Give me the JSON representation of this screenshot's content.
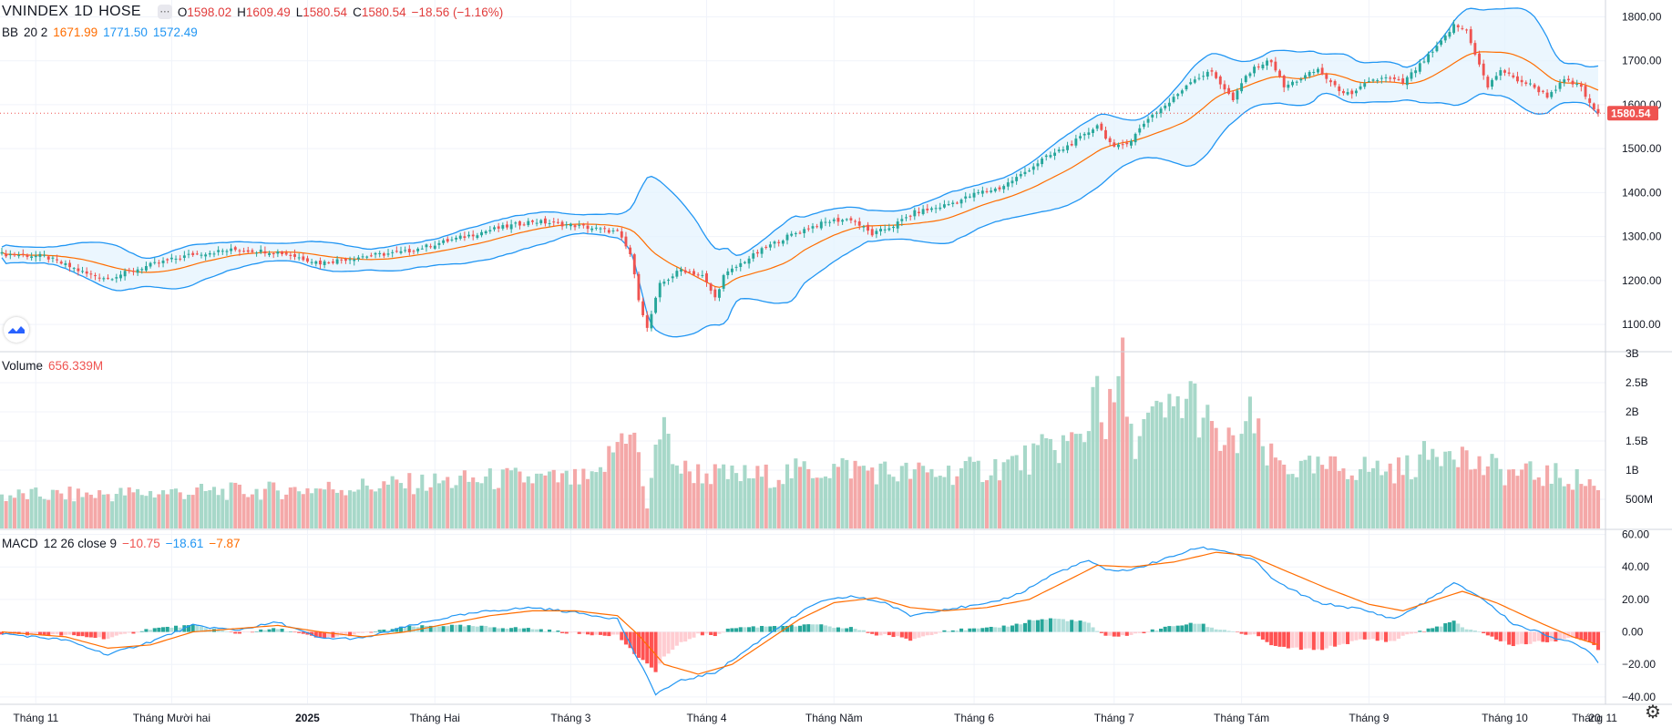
{
  "header": {
    "symbol": "VNINDEX",
    "interval": "1D",
    "exchange": "HOSE",
    "menu_icon": "ellipsis",
    "open_label": "O",
    "open": "1598.02",
    "high_label": "H",
    "high": "1609.49",
    "low_label": "L",
    "low": "1580.54",
    "close_label": "C",
    "close": "1580.54",
    "change": "−18.56 (−1.16%)"
  },
  "bb_legend": {
    "name": "BB",
    "params": "20 2",
    "basis": "1671.99",
    "upper": "1771.50",
    "lower": "1572.49"
  },
  "volume_legend": {
    "name": "Volume",
    "value": "656.339M"
  },
  "macd_legend": {
    "name": "MACD",
    "params": "12 26 close 9",
    "hist": "−10.75",
    "macd": "−18.61",
    "signal": "−7.87"
  },
  "last_price_label": "1580.54",
  "colors": {
    "up": "#26a69a",
    "down": "#ef5350",
    "bb": "#2196f3",
    "basis": "#ff6d00",
    "macd_line": "#2196f3",
    "signal_line": "#ff6d00",
    "fill": "#e3f2fd"
  },
  "chart_data": {
    "type": "candlestick",
    "x_labels": [
      "Tháng 11",
      "Tháng Mười hai",
      "2025",
      "Tháng Hai",
      "Tháng 3",
      "Tháng 4",
      "Tháng Năm",
      "Tháng 6",
      "Tháng 7",
      "Tháng Tám",
      "Tháng 9",
      "Tháng 10",
      "Tháng 11",
      "20"
    ],
    "price_axis": {
      "ticks": [
        "1100.00",
        "1200.00",
        "1300.00",
        "1400.00",
        "1500.00",
        "1600.00",
        "1700.00",
        "1800.00"
      ],
      "range": [
        1040,
        1830
      ]
    },
    "volume_axis": {
      "ticks": [
        "500M",
        "1B",
        "1.5B",
        "2B",
        "2.5B",
        "3B"
      ],
      "range": [
        0,
        3000
      ]
    },
    "macd_axis": {
      "ticks": [
        "60.00",
        "40.00",
        "20.00",
        "0.00",
        "−20.00",
        "−40.00"
      ],
      "range": [
        -44,
        62
      ]
    },
    "price_anchors": [
      [
        0,
        1260
      ],
      [
        10,
        1255
      ],
      [
        20,
        1215
      ],
      [
        25,
        1205
      ],
      [
        35,
        1235
      ],
      [
        45,
        1260
      ],
      [
        55,
        1270
      ],
      [
        65,
        1265
      ],
      [
        75,
        1240
      ],
      [
        85,
        1255
      ],
      [
        95,
        1265
      ],
      [
        105,
        1290
      ],
      [
        115,
        1315
      ],
      [
        125,
        1335
      ],
      [
        135,
        1325
      ],
      [
        145,
        1310
      ],
      [
        148,
        1260
      ],
      [
        150,
        1160
      ],
      [
        152,
        1090
      ],
      [
        155,
        1190
      ],
      [
        160,
        1225
      ],
      [
        165,
        1210
      ],
      [
        168,
        1160
      ],
      [
        170,
        1210
      ],
      [
        175,
        1245
      ],
      [
        180,
        1275
      ],
      [
        185,
        1300
      ],
      [
        190,
        1320
      ],
      [
        195,
        1335
      ],
      [
        200,
        1340
      ],
      [
        205,
        1305
      ],
      [
        210,
        1325
      ],
      [
        215,
        1355
      ],
      [
        220,
        1365
      ],
      [
        225,
        1380
      ],
      [
        230,
        1400
      ],
      [
        235,
        1410
      ],
      [
        240,
        1440
      ],
      [
        245,
        1475
      ],
      [
        250,
        1500
      ],
      [
        255,
        1530
      ],
      [
        258,
        1555
      ],
      [
        262,
        1500
      ],
      [
        266,
        1520
      ],
      [
        270,
        1570
      ],
      [
        275,
        1605
      ],
      [
        280,
        1655
      ],
      [
        285,
        1675
      ],
      [
        290,
        1610
      ],
      [
        293,
        1665
      ],
      [
        296,
        1690
      ],
      [
        299,
        1700
      ],
      [
        302,
        1640
      ],
      [
        306,
        1660
      ],
      [
        310,
        1680
      ],
      [
        314,
        1640
      ],
      [
        318,
        1620
      ],
      [
        322,
        1655
      ],
      [
        326,
        1660
      ],
      [
        330,
        1650
      ],
      [
        334,
        1690
      ],
      [
        338,
        1730
      ],
      [
        342,
        1780
      ],
      [
        345,
        1770
      ],
      [
        348,
        1690
      ],
      [
        350,
        1640
      ],
      [
        353,
        1680
      ],
      [
        356,
        1660
      ],
      [
        360,
        1645
      ],
      [
        364,
        1620
      ],
      [
        368,
        1655
      ],
      [
        372,
        1640
      ],
      [
        374,
        1600
      ],
      [
        376,
        1580
      ]
    ],
    "volume_anchors": [
      [
        0,
        560
      ],
      [
        20,
        580
      ],
      [
        40,
        620
      ],
      [
        60,
        640
      ],
      [
        80,
        700
      ],
      [
        100,
        780
      ],
      [
        120,
        860
      ],
      [
        140,
        820
      ],
      [
        148,
        1850
      ],
      [
        150,
        1200
      ],
      [
        152,
        300
      ],
      [
        154,
        1550
      ],
      [
        156,
        1600
      ],
      [
        160,
        1000
      ],
      [
        170,
        900
      ],
      [
        180,
        900
      ],
      [
        190,
        1000
      ],
      [
        200,
        1050
      ],
      [
        210,
        950
      ],
      [
        220,
        950
      ],
      [
        230,
        1000
      ],
      [
        240,
        1150
      ],
      [
        245,
        1300
      ],
      [
        250,
        1450
      ],
      [
        255,
        1500
      ],
      [
        258,
        2750
      ],
      [
        260,
        1700
      ],
      [
        264,
        2700
      ],
      [
        266,
        1500
      ],
      [
        270,
        1800
      ],
      [
        275,
        1950
      ],
      [
        280,
        2300
      ],
      [
        283,
        1900
      ],
      [
        286,
        1500
      ],
      [
        290,
        1400
      ],
      [
        294,
        1850
      ],
      [
        298,
        1200
      ],
      [
        306,
        1000
      ],
      [
        318,
        1050
      ],
      [
        330,
        1000
      ],
      [
        336,
        1250
      ],
      [
        342,
        1500
      ],
      [
        346,
        1100
      ],
      [
        356,
        950
      ],
      [
        366,
        900
      ],
      [
        374,
        800
      ],
      [
        376,
        660
      ]
    ],
    "macd_anchors": [
      [
        0,
        -1
      ],
      [
        15,
        -5
      ],
      [
        25,
        -14
      ],
      [
        35,
        -6
      ],
      [
        45,
        4
      ],
      [
        55,
        1
      ],
      [
        65,
        6
      ],
      [
        75,
        -4
      ],
      [
        85,
        -4
      ],
      [
        95,
        3
      ],
      [
        105,
        9
      ],
      [
        115,
        13
      ],
      [
        125,
        15
      ],
      [
        135,
        12
      ],
      [
        145,
        8
      ],
      [
        150,
        -18
      ],
      [
        154,
        -38
      ],
      [
        160,
        -30
      ],
      [
        168,
        -25
      ],
      [
        176,
        -10
      ],
      [
        184,
        5
      ],
      [
        192,
        18
      ],
      [
        200,
        22
      ],
      [
        208,
        18
      ],
      [
        214,
        10
      ],
      [
        222,
        14
      ],
      [
        232,
        17
      ],
      [
        240,
        24
      ],
      [
        248,
        36
      ],
      [
        256,
        44
      ],
      [
        260,
        38
      ],
      [
        266,
        38
      ],
      [
        274,
        45
      ],
      [
        282,
        52
      ],
      [
        288,
        50
      ],
      [
        295,
        44
      ],
      [
        300,
        31
      ],
      [
        310,
        18
      ],
      [
        320,
        14
      ],
      [
        328,
        8
      ],
      [
        335,
        18
      ],
      [
        342,
        30
      ],
      [
        348,
        22
      ],
      [
        356,
        5
      ],
      [
        364,
        -2
      ],
      [
        370,
        -7
      ],
      [
        374,
        -12
      ],
      [
        376,
        -18.6
      ]
    ],
    "signal_anchors": [
      [
        0,
        0
      ],
      [
        15,
        -3
      ],
      [
        25,
        -10
      ],
      [
        35,
        -8
      ],
      [
        45,
        0
      ],
      [
        55,
        2
      ],
      [
        65,
        4
      ],
      [
        75,
        0
      ],
      [
        85,
        -3
      ],
      [
        95,
        0
      ],
      [
        105,
        5
      ],
      [
        115,
        10
      ],
      [
        125,
        13
      ],
      [
        135,
        13
      ],
      [
        145,
        10
      ],
      [
        150,
        -2
      ],
      [
        156,
        -20
      ],
      [
        164,
        -26
      ],
      [
        172,
        -20
      ],
      [
        180,
        -6
      ],
      [
        188,
        8
      ],
      [
        196,
        18
      ],
      [
        206,
        21
      ],
      [
        214,
        15
      ],
      [
        222,
        13
      ],
      [
        232,
        15
      ],
      [
        242,
        20
      ],
      [
        252,
        33
      ],
      [
        258,
        41
      ],
      [
        266,
        40
      ],
      [
        276,
        43
      ],
      [
        286,
        49
      ],
      [
        294,
        47
      ],
      [
        302,
        38
      ],
      [
        312,
        27
      ],
      [
        322,
        17
      ],
      [
        330,
        13
      ],
      [
        338,
        20
      ],
      [
        344,
        25
      ],
      [
        352,
        18
      ],
      [
        362,
        6
      ],
      [
        370,
        -3
      ],
      [
        376,
        -7.9
      ]
    ]
  }
}
